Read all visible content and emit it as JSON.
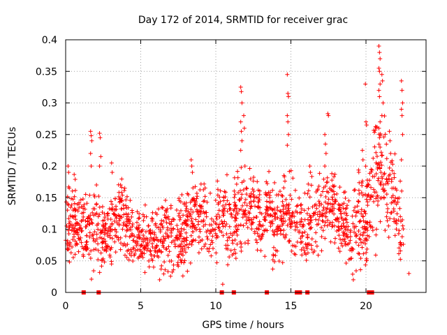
{
  "chart_data": {
    "type": "scatter",
    "title": "Day 172 of 2014, SRMTID for receiver grac",
    "xlabel": "GPS time / hours",
    "ylabel": "SRMTID / TECUs",
    "xlim": [
      0,
      24
    ],
    "ylim": [
      0,
      0.4
    ],
    "grid": true,
    "marker": "+",
    "color": "#ff0000",
    "x_ticks": [
      0,
      5,
      10,
      15,
      20
    ],
    "x_tick_labels": [
      "0",
      "5",
      "10",
      "15",
      "20"
    ],
    "y_ticks": [
      0,
      0.05,
      0.1,
      0.15,
      0.2,
      0.25,
      0.3,
      0.35,
      0.4
    ],
    "y_tick_labels": [
      "0",
      "0.05",
      "0.1",
      "0.15",
      "0.2",
      "0.25",
      "0.3",
      "0.35",
      "0.4"
    ],
    "zero_value_hours": [
      1.2,
      2.2,
      10.4,
      11.2,
      13.4,
      15.4,
      15.6,
      16.1,
      20.2,
      20.4
    ],
    "envelope": {
      "x": [
        0,
        0.5,
        1,
        1.5,
        2,
        2.5,
        3,
        3.5,
        4,
        4.5,
        5,
        5.5,
        6,
        6.5,
        7,
        7.5,
        8,
        8.5,
        9,
        9.5,
        10,
        10.5,
        11,
        11.5,
        12,
        12.5,
        13,
        13.5,
        14,
        14.5,
        15,
        15.5,
        16,
        16.5,
        17,
        17.5,
        18,
        18.5,
        19,
        19.5,
        20,
        20.5,
        21,
        21.5,
        22,
        22.5
      ],
      "median": [
        0.11,
        0.12,
        0.11,
        0.1,
        0.11,
        0.09,
        0.1,
        0.12,
        0.11,
        0.09,
        0.08,
        0.09,
        0.08,
        0.1,
        0.09,
        0.08,
        0.1,
        0.12,
        0.11,
        0.1,
        0.1,
        0.13,
        0.09,
        0.13,
        0.12,
        0.14,
        0.11,
        0.13,
        0.1,
        0.12,
        0.13,
        0.11,
        0.1,
        0.12,
        0.13,
        0.14,
        0.13,
        0.12,
        0.09,
        0.12,
        0.11,
        0.16,
        0.18,
        0.15,
        0.13,
        0.09
      ],
      "spread": [
        0.06,
        0.06,
        0.05,
        0.05,
        0.06,
        0.05,
        0.05,
        0.05,
        0.05,
        0.04,
        0.04,
        0.04,
        0.04,
        0.05,
        0.05,
        0.05,
        0.05,
        0.05,
        0.05,
        0.05,
        0.05,
        0.05,
        0.06,
        0.06,
        0.05,
        0.05,
        0.05,
        0.05,
        0.05,
        0.05,
        0.05,
        0.05,
        0.05,
        0.05,
        0.05,
        0.05,
        0.05,
        0.05,
        0.05,
        0.06,
        0.07,
        0.08,
        0.08,
        0.07,
        0.06,
        0.05
      ]
    },
    "highlights": [
      {
        "x": 0.2,
        "values": [
          0.2,
          0.19,
          0.165
        ]
      },
      {
        "x": 1.7,
        "values": [
          0.255,
          0.248,
          0.24,
          0.22,
          0.2
        ]
      },
      {
        "x": 2.3,
        "values": [
          0.252,
          0.245,
          0.215,
          0.2
        ]
      },
      {
        "x": 3.1,
        "values": [
          0.205,
          0.19
        ]
      },
      {
        "x": 8.4,
        "values": [
          0.21,
          0.2,
          0.19
        ]
      },
      {
        "x": 11.7,
        "values": [
          0.325,
          0.318,
          0.3,
          0.27,
          0.255,
          0.24,
          0.225
        ]
      },
      {
        "x": 11.9,
        "values": [
          0.28,
          0.26,
          0.2
        ]
      },
      {
        "x": 14.8,
        "values": [
          0.345,
          0.315,
          0.31,
          0.28,
          0.27,
          0.25,
          0.233
        ]
      },
      {
        "x": 16.3,
        "values": [
          0.2,
          0.19
        ]
      },
      {
        "x": 17.3,
        "values": [
          0.25,
          0.235,
          0.22,
          0.2
        ]
      },
      {
        "x": 17.5,
        "values": [
          0.283,
          0.28
        ]
      },
      {
        "x": 19.8,
        "values": [
          0.225,
          0.21
        ]
      },
      {
        "x": 20.0,
        "values": [
          0.33,
          0.27,
          0.265
        ]
      },
      {
        "x": 20.9,
        "values": [
          0.39,
          0.38,
          0.37,
          0.355,
          0.35,
          0.33,
          0.32,
          0.31,
          0.27,
          0.26,
          0.245,
          0.23
        ]
      },
      {
        "x": 21.1,
        "values": [
          0.345,
          0.335,
          0.3,
          0.28
        ]
      },
      {
        "x": 21.6,
        "values": [
          0.255,
          0.24,
          0.22
        ]
      },
      {
        "x": 22.4,
        "values": [
          0.335,
          0.32,
          0.3,
          0.29,
          0.28,
          0.25,
          0.21
        ]
      },
      {
        "x": 22.9,
        "values": [
          0.03
        ]
      },
      {
        "x": 6.3,
        "values": [
          0.02
        ]
      },
      {
        "x": 10.5,
        "values": [
          0.013
        ]
      }
    ]
  }
}
